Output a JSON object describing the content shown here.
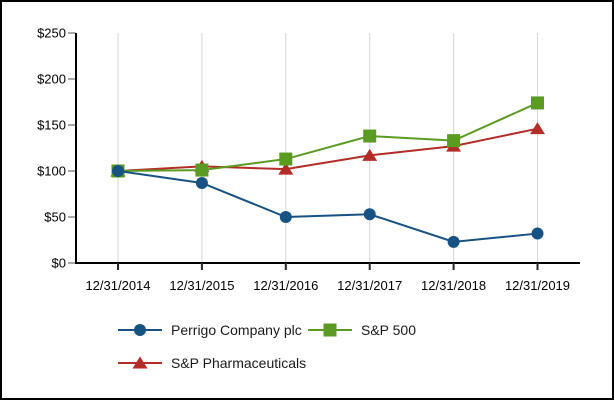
{
  "chart_data": {
    "type": "line",
    "title": "",
    "xlabel": "",
    "ylabel": "",
    "categories": [
      "12/31/2014",
      "12/31/2015",
      "12/31/2016",
      "12/31/2017",
      "12/31/2018",
      "12/31/2019"
    ],
    "series": [
      {
        "name": "Perrigo Company plc",
        "marker": "circle",
        "color": "#175283",
        "values": [
          100,
          87,
          50,
          53,
          23,
          32
        ]
      },
      {
        "name": "S&P 500",
        "marker": "square",
        "color": "#5b9b22",
        "values": [
          100,
          101,
          113,
          138,
          133,
          174
        ]
      },
      {
        "name": "S&P Pharmaceuticals",
        "marker": "triangle",
        "color": "#b32d28",
        "values": [
          100,
          105,
          102,
          117,
          127,
          146
        ]
      }
    ],
    "y_axis": {
      "min": 0,
      "max": 250,
      "step": 50,
      "tick_labels": [
        "$0",
        "$50",
        "$100",
        "$150",
        "$200",
        "$250"
      ]
    },
    "grid": "vertical-only",
    "legend_position": "bottom",
    "colors": {
      "grid": "#d6d6d6",
      "axis": "#000000",
      "tick": "#8a8a8a",
      "text": "#000000"
    }
  }
}
